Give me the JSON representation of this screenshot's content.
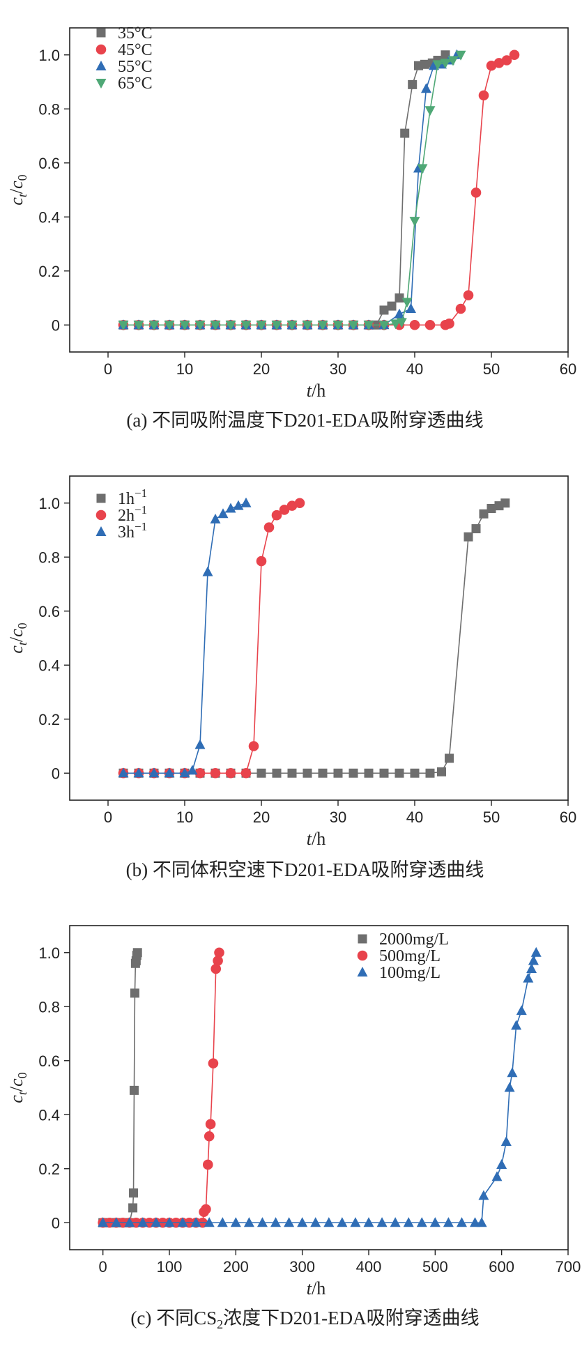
{
  "chart_data": [
    {
      "type": "line",
      "caption": "(a) 不同吸附温度下D201-EDA吸附穿透曲线",
      "xlabel": "t/h",
      "ylabel": "ct/c0",
      "xlim": [
        -5,
        60
      ],
      "ylim": [
        -0.1,
        1.1
      ],
      "xticks": [
        0,
        10,
        20,
        30,
        40,
        50,
        60
      ],
      "yticks": [
        0,
        0.2,
        0.4,
        0.6,
        0.8,
        1.0
      ],
      "ytick_labels": [
        "0",
        "0.2",
        "0.4",
        "0.6",
        "0.8",
        "1.0"
      ],
      "legend_position": "top-left",
      "series": [
        {
          "name": "35°C",
          "color": "#6e6e6e",
          "marker": "square",
          "x": [
            2,
            4,
            6,
            8,
            10,
            12,
            14,
            16,
            18,
            20,
            22,
            24,
            26,
            28,
            30,
            32,
            34,
            35,
            36,
            37,
            38,
            38.7,
            39.7,
            40.5,
            41.3,
            42.3,
            43,
            44
          ],
          "y": [
            0,
            0,
            0,
            0,
            0,
            0,
            0,
            0,
            0,
            0,
            0,
            0,
            0,
            0,
            0,
            0,
            0,
            0,
            0.055,
            0.07,
            0.1,
            0.71,
            0.89,
            0.96,
            0.965,
            0.97,
            0.98,
            1.0
          ]
        },
        {
          "name": "45°C",
          "color": "#e8434c",
          "marker": "circle",
          "x": [
            2,
            4,
            6,
            8,
            10,
            12,
            14,
            16,
            18,
            20,
            22,
            24,
            26,
            28,
            30,
            32,
            34,
            36,
            38,
            40,
            42,
            44,
            44.5,
            46,
            47,
            48,
            49,
            50,
            51,
            52,
            53
          ],
          "y": [
            0,
            0,
            0,
            0,
            0,
            0,
            0,
            0,
            0,
            0,
            0,
            0,
            0,
            0,
            0,
            0,
            0,
            0,
            0,
            0,
            0,
            0,
            0.005,
            0.06,
            0.11,
            0.49,
            0.85,
            0.96,
            0.97,
            0.98,
            1.0
          ]
        },
        {
          "name": "55°C",
          "color": "#2f6db5",
          "marker": "triangle-up",
          "x": [
            2,
            4,
            6,
            8,
            10,
            12,
            14,
            16,
            18,
            20,
            22,
            24,
            26,
            28,
            30,
            32,
            34,
            36,
            38,
            39.5,
            40.5,
            41.5,
            42.5,
            43.5,
            44.5,
            45.5
          ],
          "y": [
            0,
            0,
            0,
            0,
            0,
            0,
            0,
            0,
            0,
            0,
            0,
            0,
            0,
            0,
            0,
            0,
            0,
            0,
            0.04,
            0.06,
            0.58,
            0.875,
            0.96,
            0.965,
            0.98,
            1.0
          ]
        },
        {
          "name": "65°C",
          "color": "#4fa876",
          "marker": "triangle-down",
          "x": [
            2,
            4,
            6,
            8,
            10,
            12,
            14,
            16,
            18,
            20,
            22,
            24,
            26,
            28,
            30,
            32,
            34,
            36,
            37.5,
            38.3,
            39,
            40,
            41,
            42,
            43,
            44,
            45,
            46
          ],
          "y": [
            0,
            0,
            0,
            0,
            0,
            0,
            0,
            0,
            0,
            0,
            0,
            0,
            0,
            0,
            0,
            0,
            0,
            0,
            0.005,
            0.01,
            0.085,
            0.385,
            0.58,
            0.795,
            0.965,
            0.97,
            0.98,
            1.0
          ]
        }
      ]
    },
    {
      "type": "line",
      "caption": "(b) 不同体积空速下D201-EDA吸附穿透曲线",
      "xlabel": "t/h",
      "ylabel": "ct/c0",
      "xlim": [
        -5,
        60
      ],
      "ylim": [
        -0.1,
        1.1
      ],
      "xticks": [
        0,
        10,
        20,
        30,
        40,
        50,
        60
      ],
      "yticks": [
        0,
        0.2,
        0.4,
        0.6,
        0.8,
        1.0
      ],
      "ytick_labels": [
        "0",
        "0.2",
        "0.4",
        "0.6",
        "0.8",
        "1.0"
      ],
      "legend_position": "top-left",
      "series": [
        {
          "name": "1h⁻¹",
          "color": "#6e6e6e",
          "marker": "square",
          "x": [
            2,
            4,
            6,
            8,
            10,
            12,
            14,
            16,
            18,
            20,
            22,
            24,
            26,
            28,
            30,
            32,
            34,
            36,
            38,
            40,
            42,
            43.5,
            44.5,
            47,
            48,
            49,
            50,
            51,
            51.8
          ],
          "y": [
            0,
            0,
            0,
            0,
            0,
            0,
            0,
            0,
            0,
            0,
            0,
            0,
            0,
            0,
            0,
            0,
            0,
            0,
            0,
            0,
            0,
            0.005,
            0.055,
            0.875,
            0.905,
            0.96,
            0.98,
            0.99,
            1.0
          ]
        },
        {
          "name": "2h⁻¹",
          "color": "#e8434c",
          "marker": "circle",
          "x": [
            2,
            4,
            6,
            8,
            10,
            12,
            14,
            16,
            18,
            19,
            20,
            21,
            22,
            23,
            24,
            25
          ],
          "y": [
            0,
            0,
            0,
            0,
            0,
            0,
            0,
            0,
            0,
            0.1,
            0.785,
            0.91,
            0.955,
            0.975,
            0.99,
            1.0
          ]
        },
        {
          "name": "3h⁻¹",
          "color": "#2f6db5",
          "marker": "triangle-up",
          "x": [
            2,
            4,
            6,
            8,
            10,
            11,
            12,
            13,
            14,
            15,
            16,
            17,
            18
          ],
          "y": [
            0,
            0,
            0,
            0,
            0,
            0.01,
            0.105,
            0.745,
            0.94,
            0.96,
            0.98,
            0.99,
            1.0
          ]
        }
      ]
    },
    {
      "type": "line",
      "caption": "(c) 不同CS₂浓度下D201-EDA吸附穿透曲线",
      "xlabel": "t/h",
      "ylabel": "ct/c0",
      "xlim": [
        -50,
        700
      ],
      "ylim": [
        -0.1,
        1.1
      ],
      "xticks": [
        0,
        100,
        200,
        300,
        400,
        500,
        600,
        700
      ],
      "yticks": [
        0,
        0.2,
        0.4,
        0.6,
        0.8,
        1.0
      ],
      "ytick_labels": [
        "0",
        "0.2",
        "0.4",
        "0.6",
        "0.8",
        "1.0"
      ],
      "legend_position": "top-right",
      "series": [
        {
          "name": "2000mg/L",
          "color": "#6e6e6e",
          "marker": "square",
          "x": [
            0,
            5,
            10,
            15,
            20,
            25,
            30,
            35,
            40,
            45,
            46,
            47,
            48,
            49,
            50,
            51,
            52
          ],
          "y": [
            0,
            0,
            0,
            0,
            0,
            0,
            0,
            0,
            0,
            0.055,
            0.11,
            0.49,
            0.85,
            0.96,
            0.97,
            0.99,
            1.0
          ]
        },
        {
          "name": "500mg/L",
          "color": "#e8434c",
          "marker": "circle",
          "x": [
            0,
            10,
            20,
            30,
            40,
            50,
            60,
            70,
            80,
            90,
            100,
            110,
            120,
            130,
            140,
            150,
            152,
            155,
            158,
            160,
            162,
            166,
            170,
            173,
            175
          ],
          "y": [
            0,
            0,
            0,
            0,
            0,
            0,
            0,
            0,
            0,
            0,
            0,
            0,
            0,
            0,
            0,
            0,
            0.04,
            0.05,
            0.215,
            0.32,
            0.365,
            0.59,
            0.94,
            0.97,
            1.0
          ]
        },
        {
          "name": "100mg/L",
          "color": "#2f6db5",
          "marker": "triangle-up",
          "x": [
            0,
            20,
            40,
            60,
            80,
            100,
            120,
            140,
            160,
            180,
            200,
            220,
            240,
            260,
            280,
            300,
            320,
            340,
            360,
            380,
            400,
            420,
            440,
            460,
            480,
            500,
            520,
            540,
            560,
            570,
            573,
            593,
            600,
            607,
            612,
            616,
            622,
            630,
            640,
            645,
            648,
            652
          ],
          "y": [
            0,
            0,
            0,
            0,
            0,
            0,
            0,
            0,
            0,
            0,
            0,
            0,
            0,
            0,
            0,
            0,
            0,
            0,
            0,
            0,
            0,
            0,
            0,
            0,
            0,
            0,
            0,
            0,
            0,
            0,
            0.1,
            0.17,
            0.215,
            0.3,
            0.5,
            0.555,
            0.73,
            0.785,
            0.905,
            0.94,
            0.97,
            1.0
          ]
        }
      ]
    }
  ]
}
